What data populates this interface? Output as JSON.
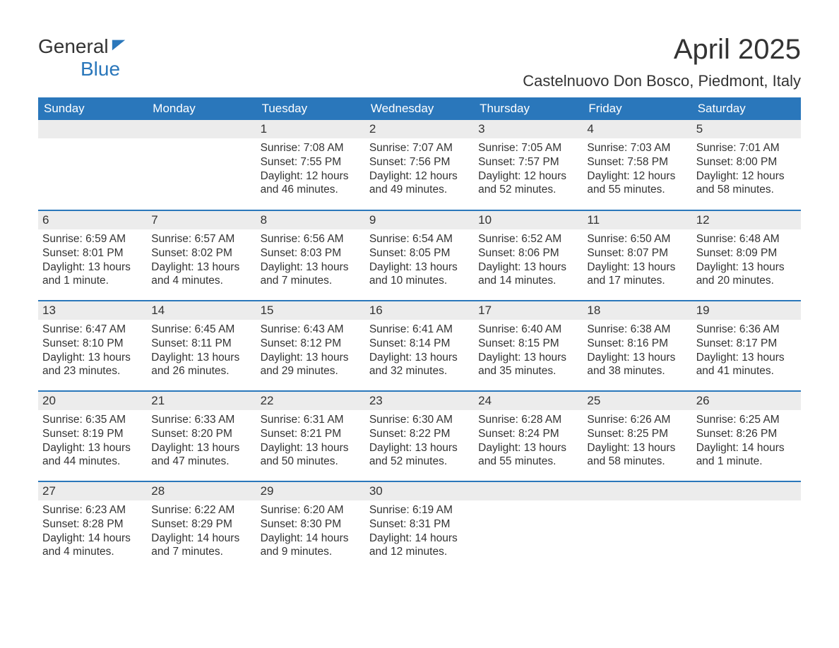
{
  "brand": {
    "line1": "General",
    "line2": "Blue"
  },
  "title": "April 2025",
  "subtitle": "Castelnuovo Don Bosco, Piedmont, Italy",
  "colors": {
    "accent": "#2a77bb",
    "header_bg": "#2a77bb",
    "header_text": "#ffffff",
    "day_num_bg": "#ececec",
    "text": "#333333",
    "background": "#ffffff"
  },
  "typography": {
    "title_fontsize": 40,
    "subtitle_fontsize": 22,
    "header_fontsize": 17,
    "body_fontsize": 15.5,
    "font_family": "Arial"
  },
  "calendar": {
    "columns": [
      "Sunday",
      "Monday",
      "Tuesday",
      "Wednesday",
      "Thursday",
      "Friday",
      "Saturday"
    ],
    "grid_border_color": "#2a77bb",
    "grid_border_width": 2,
    "weeks": [
      [
        null,
        null,
        {
          "day": "1",
          "sunrise": "Sunrise: 7:08 AM",
          "sunset": "Sunset: 7:55 PM",
          "daylight": "Daylight: 12 hours and 46 minutes."
        },
        {
          "day": "2",
          "sunrise": "Sunrise: 7:07 AM",
          "sunset": "Sunset: 7:56 PM",
          "daylight": "Daylight: 12 hours and 49 minutes."
        },
        {
          "day": "3",
          "sunrise": "Sunrise: 7:05 AM",
          "sunset": "Sunset: 7:57 PM",
          "daylight": "Daylight: 12 hours and 52 minutes."
        },
        {
          "day": "4",
          "sunrise": "Sunrise: 7:03 AM",
          "sunset": "Sunset: 7:58 PM",
          "daylight": "Daylight: 12 hours and 55 minutes."
        },
        {
          "day": "5",
          "sunrise": "Sunrise: 7:01 AM",
          "sunset": "Sunset: 8:00 PM",
          "daylight": "Daylight: 12 hours and 58 minutes."
        }
      ],
      [
        {
          "day": "6",
          "sunrise": "Sunrise: 6:59 AM",
          "sunset": "Sunset: 8:01 PM",
          "daylight": "Daylight: 13 hours and 1 minute."
        },
        {
          "day": "7",
          "sunrise": "Sunrise: 6:57 AM",
          "sunset": "Sunset: 8:02 PM",
          "daylight": "Daylight: 13 hours and 4 minutes."
        },
        {
          "day": "8",
          "sunrise": "Sunrise: 6:56 AM",
          "sunset": "Sunset: 8:03 PM",
          "daylight": "Daylight: 13 hours and 7 minutes."
        },
        {
          "day": "9",
          "sunrise": "Sunrise: 6:54 AM",
          "sunset": "Sunset: 8:05 PM",
          "daylight": "Daylight: 13 hours and 10 minutes."
        },
        {
          "day": "10",
          "sunrise": "Sunrise: 6:52 AM",
          "sunset": "Sunset: 8:06 PM",
          "daylight": "Daylight: 13 hours and 14 minutes."
        },
        {
          "day": "11",
          "sunrise": "Sunrise: 6:50 AM",
          "sunset": "Sunset: 8:07 PM",
          "daylight": "Daylight: 13 hours and 17 minutes."
        },
        {
          "day": "12",
          "sunrise": "Sunrise: 6:48 AM",
          "sunset": "Sunset: 8:09 PM",
          "daylight": "Daylight: 13 hours and 20 minutes."
        }
      ],
      [
        {
          "day": "13",
          "sunrise": "Sunrise: 6:47 AM",
          "sunset": "Sunset: 8:10 PM",
          "daylight": "Daylight: 13 hours and 23 minutes."
        },
        {
          "day": "14",
          "sunrise": "Sunrise: 6:45 AM",
          "sunset": "Sunset: 8:11 PM",
          "daylight": "Daylight: 13 hours and 26 minutes."
        },
        {
          "day": "15",
          "sunrise": "Sunrise: 6:43 AM",
          "sunset": "Sunset: 8:12 PM",
          "daylight": "Daylight: 13 hours and 29 minutes."
        },
        {
          "day": "16",
          "sunrise": "Sunrise: 6:41 AM",
          "sunset": "Sunset: 8:14 PM",
          "daylight": "Daylight: 13 hours and 32 minutes."
        },
        {
          "day": "17",
          "sunrise": "Sunrise: 6:40 AM",
          "sunset": "Sunset: 8:15 PM",
          "daylight": "Daylight: 13 hours and 35 minutes."
        },
        {
          "day": "18",
          "sunrise": "Sunrise: 6:38 AM",
          "sunset": "Sunset: 8:16 PM",
          "daylight": "Daylight: 13 hours and 38 minutes."
        },
        {
          "day": "19",
          "sunrise": "Sunrise: 6:36 AM",
          "sunset": "Sunset: 8:17 PM",
          "daylight": "Daylight: 13 hours and 41 minutes."
        }
      ],
      [
        {
          "day": "20",
          "sunrise": "Sunrise: 6:35 AM",
          "sunset": "Sunset: 8:19 PM",
          "daylight": "Daylight: 13 hours and 44 minutes."
        },
        {
          "day": "21",
          "sunrise": "Sunrise: 6:33 AM",
          "sunset": "Sunset: 8:20 PM",
          "daylight": "Daylight: 13 hours and 47 minutes."
        },
        {
          "day": "22",
          "sunrise": "Sunrise: 6:31 AM",
          "sunset": "Sunset: 8:21 PM",
          "daylight": "Daylight: 13 hours and 50 minutes."
        },
        {
          "day": "23",
          "sunrise": "Sunrise: 6:30 AM",
          "sunset": "Sunset: 8:22 PM",
          "daylight": "Daylight: 13 hours and 52 minutes."
        },
        {
          "day": "24",
          "sunrise": "Sunrise: 6:28 AM",
          "sunset": "Sunset: 8:24 PM",
          "daylight": "Daylight: 13 hours and 55 minutes."
        },
        {
          "day": "25",
          "sunrise": "Sunrise: 6:26 AM",
          "sunset": "Sunset: 8:25 PM",
          "daylight": "Daylight: 13 hours and 58 minutes."
        },
        {
          "day": "26",
          "sunrise": "Sunrise: 6:25 AM",
          "sunset": "Sunset: 8:26 PM",
          "daylight": "Daylight: 14 hours and 1 minute."
        }
      ],
      [
        {
          "day": "27",
          "sunrise": "Sunrise: 6:23 AM",
          "sunset": "Sunset: 8:28 PM",
          "daylight": "Daylight: 14 hours and 4 minutes."
        },
        {
          "day": "28",
          "sunrise": "Sunrise: 6:22 AM",
          "sunset": "Sunset: 8:29 PM",
          "daylight": "Daylight: 14 hours and 7 minutes."
        },
        {
          "day": "29",
          "sunrise": "Sunrise: 6:20 AM",
          "sunset": "Sunset: 8:30 PM",
          "daylight": "Daylight: 14 hours and 9 minutes."
        },
        {
          "day": "30",
          "sunrise": "Sunrise: 6:19 AM",
          "sunset": "Sunset: 8:31 PM",
          "daylight": "Daylight: 14 hours and 12 minutes."
        },
        null,
        null,
        null
      ]
    ]
  }
}
